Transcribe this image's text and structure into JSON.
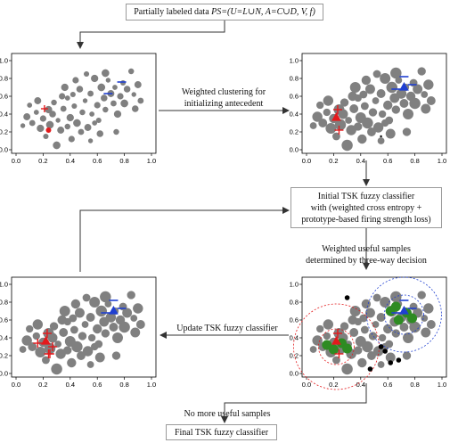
{
  "boxes": {
    "top": {
      "prefix": "Partially labeled data ",
      "formula": "PS=(U=L∪N, A=C∪D, V, f)"
    },
    "classifier": {
      "line1": "Initial TSK fuzzy classifier",
      "line2": "with (weighted cross entropy +",
      "line3": "prototype-based firing strength loss)"
    },
    "final": {
      "text": "Final TSK fuzzy classifier"
    }
  },
  "labels": {
    "clustering_line1": "Weighted clustering for",
    "clustering_line2": "initializing antecedent",
    "weighted_line1": "Weighted useful samples",
    "weighted_line2": "determined by three-way decision",
    "update": "Update TSK fuzzy classifier",
    "no_more": "No more useful samples"
  },
  "plots": {
    "x_ticks": [
      "0.0",
      "0.2",
      "0.4",
      "0.6",
      "0.8",
      "1.0"
    ],
    "y_ticks": [
      "0.0",
      "0.2",
      "0.4",
      "0.6",
      "0.8",
      "1.0"
    ]
  },
  "colors": {
    "gray_points": "#808080",
    "class_red": "#e31a1c",
    "class_blue": "#1f3fd1",
    "useful_green": "#2e8b22",
    "rejected_black": "#000000",
    "arrow": "#333333"
  }
}
